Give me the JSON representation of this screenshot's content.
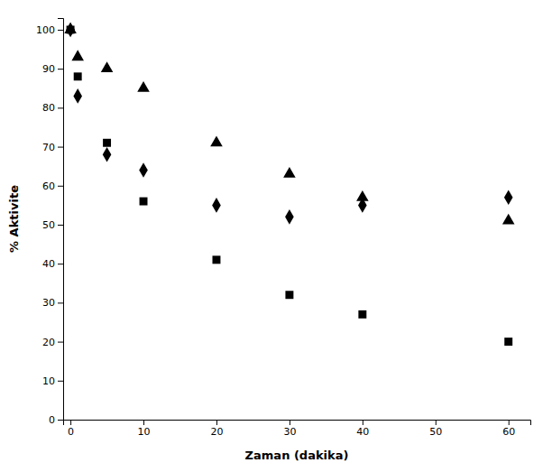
{
  "chart_data": {
    "type": "scatter",
    "xlabel": "Zaman (dakika)",
    "ylabel": "% Aktivite",
    "xlim": [
      -1,
      63
    ],
    "ylim": [
      0,
      103
    ],
    "xticks": [
      0,
      10,
      20,
      30,
      40,
      50,
      60
    ],
    "yticks": [
      0,
      10,
      20,
      30,
      40,
      50,
      60,
      70,
      80,
      90,
      100
    ],
    "grid": false,
    "color": "#000000",
    "series": [
      {
        "marker": "triangle",
        "x": [
          0,
          1,
          5,
          10,
          20,
          30,
          40,
          60
        ],
        "values": [
          100,
          93,
          90,
          85,
          71,
          63,
          57,
          51
        ]
      },
      {
        "marker": "square",
        "x": [
          0,
          1,
          5,
          10,
          20,
          30,
          40,
          60
        ],
        "values": [
          100,
          88,
          71,
          56,
          41,
          32,
          27,
          20
        ]
      },
      {
        "marker": "diamond",
        "x": [
          0,
          1,
          5,
          10,
          20,
          30,
          40,
          60
        ],
        "values": [
          100,
          83,
          68,
          64,
          55,
          52,
          55,
          57
        ]
      }
    ]
  }
}
